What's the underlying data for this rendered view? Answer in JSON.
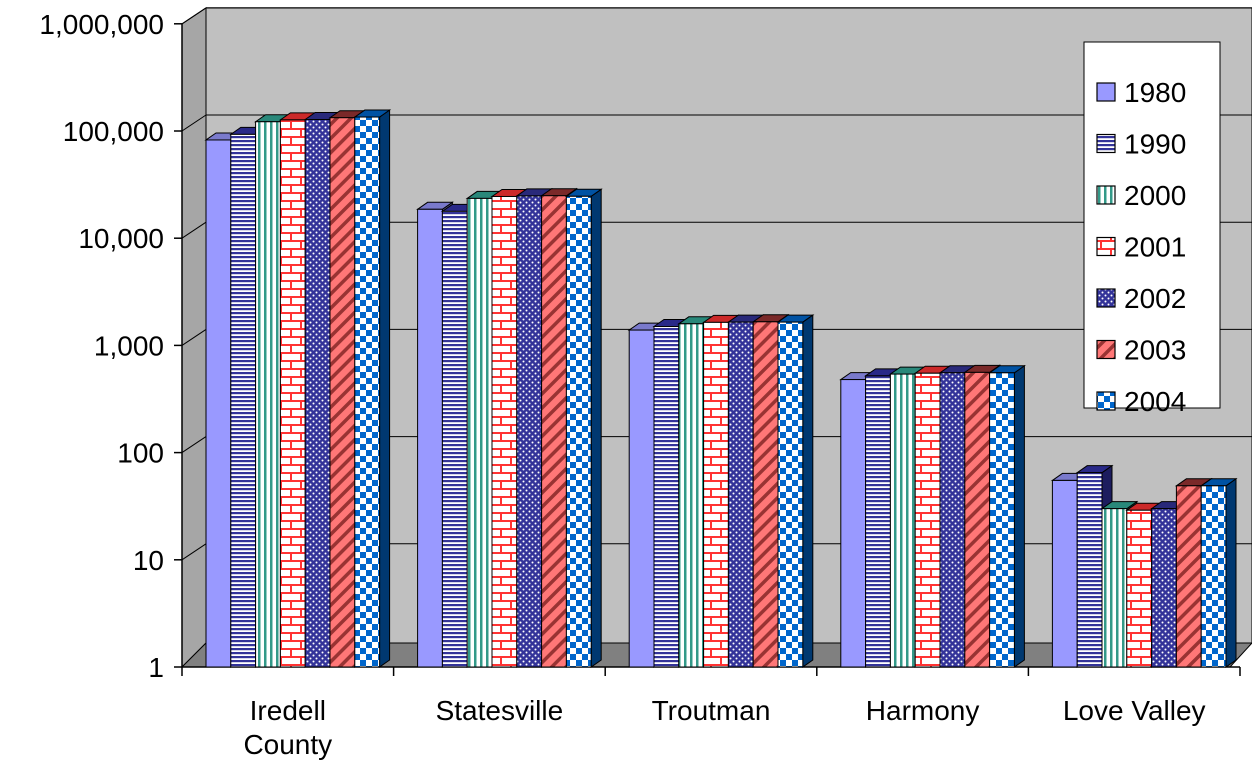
{
  "chart_data": {
    "type": "bar",
    "title": "",
    "xlabel": "",
    "ylabel": "",
    "scale": "log",
    "ylim": [
      1,
      1000000
    ],
    "y_ticks": [
      "1",
      "10",
      "100",
      "1,000",
      "10,000",
      "100,000",
      "1,000,000"
    ],
    "categories": [
      [
        "Iredell",
        "County"
      ],
      [
        "Statesville"
      ],
      [
        "Troutman"
      ],
      [
        "Harmony"
      ],
      [
        "Love Valley"
      ]
    ],
    "grid": true,
    "legend_position": "right",
    "series": [
      {
        "name": "1980",
        "values": [
          82500,
          18600,
          1390,
          480,
          55
        ],
        "color": "#9999ff",
        "pattern": "solid"
      },
      {
        "name": "1990",
        "values": [
          93000,
          17800,
          1500,
          520,
          65
        ],
        "color": "#3333aa",
        "pattern": "hstripe"
      },
      {
        "name": "2000",
        "values": [
          122000,
          23500,
          1590,
          540,
          30
        ],
        "color": "#33aa99",
        "pattern": "vstripe"
      },
      {
        "name": "2001",
        "values": [
          127000,
          24500,
          1640,
          550,
          29
        ],
        "color": "#ff3333",
        "pattern": "brick"
      },
      {
        "name": "2002",
        "values": [
          128000,
          24800,
          1650,
          555,
          30
        ],
        "color": "#333399",
        "pattern": "dots"
      },
      {
        "name": "2003",
        "values": [
          133000,
          24900,
          1660,
          560,
          49
        ],
        "color": "#993333",
        "pattern": "diag"
      },
      {
        "name": "2004",
        "values": [
          135000,
          24600,
          1650,
          555,
          49
        ],
        "color": "#0066cc",
        "pattern": "checker"
      }
    ]
  }
}
